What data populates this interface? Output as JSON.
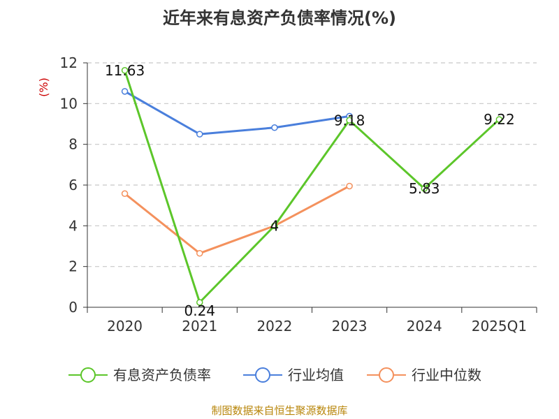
{
  "title": "近年来有息资产负债率情况(%)",
  "source": "制图数据来自恒生聚源数据库",
  "chart_data": {
    "type": "line",
    "title": "近年来有息资产负债率情况(%)",
    "ylabel": "(%)",
    "xlabel": "",
    "categories": [
      "2020",
      "2021",
      "2022",
      "2023",
      "2024",
      "2025Q1"
    ],
    "ylim": [
      0,
      12
    ],
    "yticks": [
      0,
      2,
      4,
      6,
      8,
      10,
      12
    ],
    "grid": true,
    "legend_position": "bottom",
    "series": [
      {
        "name": "有息资产负债率",
        "color": "#5cc62a",
        "values": [
          11.63,
          0.24,
          4,
          9.18,
          5.83,
          9.22
        ],
        "labels": [
          "11.63",
          "0.24",
          "4",
          "9.18",
          "5.83",
          "9.22"
        ]
      },
      {
        "name": "行业均值",
        "color": "#4a7fdc",
        "values": [
          10.6,
          8.5,
          8.82,
          9.38,
          null,
          null
        ]
      },
      {
        "name": "行业中位数",
        "color": "#f4915d",
        "values": [
          5.58,
          2.65,
          4.0,
          5.95,
          null,
          null
        ]
      }
    ]
  }
}
